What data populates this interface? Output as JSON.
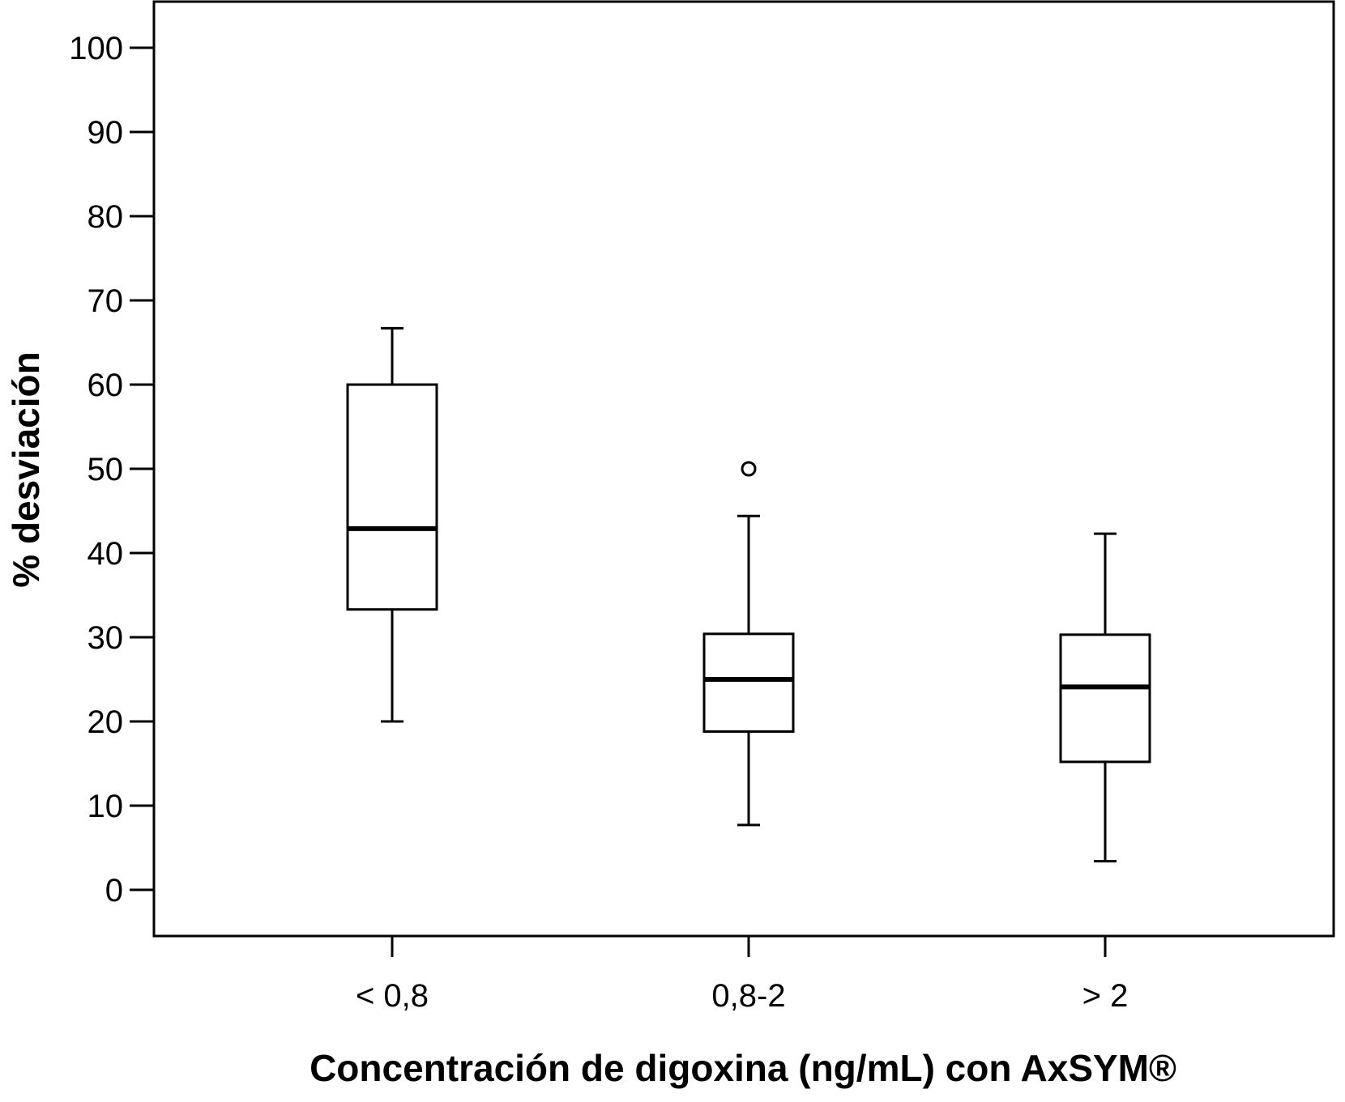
{
  "chart_data": {
    "type": "boxplot",
    "title": "",
    "xlabel": "Concentración de digoxina (ng/mL) con AxSYM®",
    "ylabel": "% desviación",
    "ylim": [
      -5.5,
      105.5
    ],
    "yticks": [
      0,
      10,
      20,
      30,
      40,
      50,
      60,
      70,
      80,
      90,
      100
    ],
    "categories": [
      "< 0,8",
      "0,8-2",
      "> 2"
    ],
    "boxes": [
      {
        "category": "< 0,8",
        "whisker_low": 20,
        "q1": 33.3,
        "median": 42.9,
        "q3": 60,
        "whisker_high": 66.7,
        "outliers": []
      },
      {
        "category": "0,8-2",
        "whisker_low": 7.7,
        "q1": 18.8,
        "median": 25,
        "q3": 30.4,
        "whisker_high": 44.4,
        "outliers": [
          50
        ]
      },
      {
        "category": "> 2",
        "whisker_low": 3.4,
        "q1": 15.2,
        "median": 24.1,
        "q3": 30.3,
        "whisker_high": 42.3,
        "outliers": []
      }
    ],
    "grid": false,
    "legend": "none"
  }
}
